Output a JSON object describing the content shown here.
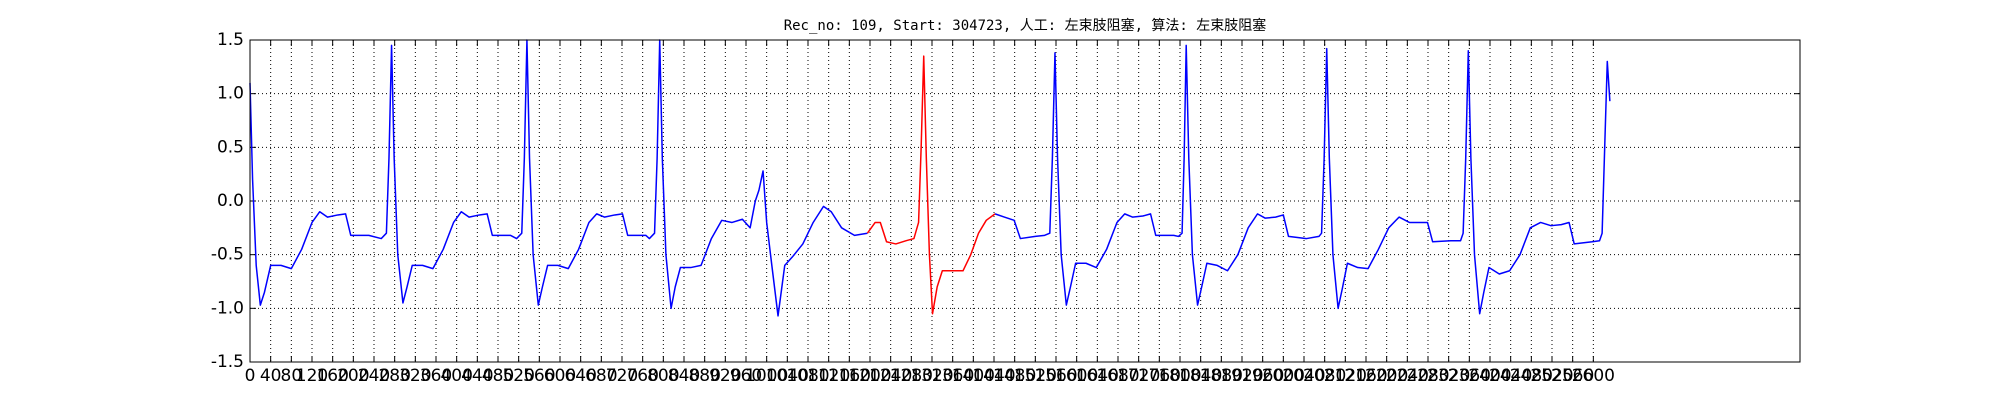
{
  "chart_data": {
    "type": "line",
    "title": "Rec_no: 109, Start: 304723, 人工: 左束肢阻塞, 算法: 左束肢阻塞",
    "xlim": [
      0,
      3000
    ],
    "xticks": [
      0,
      40,
      80,
      120,
      160,
      200,
      240,
      280,
      320,
      360,
      400,
      440,
      480,
      520,
      560,
      600,
      640,
      680,
      720,
      760,
      800,
      840,
      880,
      920,
      960,
      1000,
      1040,
      1080,
      1120,
      1160,
      1200,
      1240,
      1280,
      1320,
      1360,
      1400,
      1440,
      1480,
      1520,
      1560,
      1600,
      1640,
      1680,
      1720,
      1760,
      1800,
      1840,
      1880,
      1920,
      1960,
      2000,
      2040,
      2080,
      2120,
      2160,
      2200,
      2240,
      2280,
      2320,
      2360,
      2400,
      2440,
      2480,
      2520,
      2560,
      2600
    ],
    "ylim": [
      -1.5,
      1.5
    ],
    "yticks": [
      -1.5,
      {
        "value": -1,
        "label": "-1.0"
      },
      -0.5,
      {
        "value": 0,
        "label": "0.0"
      },
      0.5,
      {
        "value": 1,
        "label": "1.0"
      },
      1.5
    ],
    "grid": true,
    "series": [
      {
        "color": "#0000ff",
        "x": [
          0,
          5,
          12,
          20,
          28,
          40,
          60,
          80,
          100,
          120,
          135,
          150,
          170,
          185,
          195,
          230,
          254,
          264,
          269,
          274,
          279,
          286,
          296,
          304,
          314,
          334,
          354,
          374,
          394,
          409,
          424,
          444,
          459,
          469,
          504,
          516,
          526,
          531,
          536,
          541,
          548,
          558,
          566,
          576,
          596,
          616,
          636,
          656,
          671,
          686,
          706,
          721,
          731,
          766,
          773,
          783,
          788,
          793,
          798,
          805,
          815,
          823,
          833,
          853,
          873,
          893,
          913,
          933,
          953,
          968,
          978,
          985,
          993,
          1000,
          1010,
          1022,
          1035,
          1050,
          1070,
          1090,
          1110,
          1125,
          1145,
          1170,
          1195,
          1300,
          1442,
          1460,
          1479,
          1491,
          1520,
          1538,
          1548,
          1553,
          1558,
          1563,
          1570,
          1580,
          1588,
          1598,
          1618,
          1638,
          1658,
          1678,
          1693,
          1708,
          1728,
          1743,
          1753,
          1788,
          1797,
          1804,
          1808,
          1812,
          1817,
          1824,
          1834,
          1842,
          1852,
          1872,
          1892,
          1912,
          1932,
          1950,
          1965,
          1985,
          2000,
          2010,
          2045,
          2069,
          2074,
          2079,
          2084,
          2089,
          2096,
          2106,
          2114,
          2124,
          2144,
          2164,
          2184,
          2204,
          2224,
          2244,
          2264,
          2279,
          2289,
          2324,
          2343,
          2348,
          2353,
          2358,
          2363,
          2370,
          2380,
          2388,
          2398,
          2418,
          2438,
          2458,
          2478,
          2498,
          2518,
          2538,
          2553,
          2563,
          2598,
          2612,
          2617,
          2622,
          2627,
          2632
        ],
        "values": [
          1.1,
          0.2,
          -0.6,
          -0.97,
          -0.85,
          -0.6,
          -0.6,
          -0.63,
          -0.45,
          -0.2,
          -0.1,
          -0.15,
          -0.13,
          -0.12,
          -0.32,
          -0.32,
          -0.35,
          -0.3,
          0.4,
          1.45,
          0.4,
          -0.5,
          -0.95,
          -0.8,
          -0.6,
          -0.6,
          -0.63,
          -0.45,
          -0.2,
          -0.1,
          -0.15,
          -0.13,
          -0.12,
          -0.32,
          -0.32,
          -0.35,
          -0.3,
          0.4,
          1.5,
          0.4,
          -0.5,
          -0.97,
          -0.8,
          -0.6,
          -0.6,
          -0.63,
          -0.45,
          -0.2,
          -0.12,
          -0.15,
          -0.13,
          -0.12,
          -0.32,
          -0.32,
          -0.35,
          -0.3,
          0.4,
          1.5,
          0.4,
          -0.5,
          -1.0,
          -0.8,
          -0.62,
          -0.62,
          -0.6,
          -0.35,
          -0.18,
          -0.2,
          -0.17,
          -0.25,
          0.0,
          0.1,
          0.28,
          -0.2,
          -0.6,
          -1.07,
          -0.6,
          -0.52,
          -0.4,
          -0.2,
          -0.05,
          -0.1,
          -0.25,
          -0.32,
          -0.3,
          null,
          -0.12,
          -0.15,
          -0.18,
          -0.35,
          -0.33,
          -0.32,
          -0.3,
          0.4,
          1.38,
          0.4,
          -0.5,
          -0.97,
          -0.8,
          -0.58,
          -0.58,
          -0.62,
          -0.45,
          -0.2,
          -0.12,
          -0.15,
          -0.14,
          -0.12,
          -0.32,
          -0.32,
          -0.33,
          -0.3,
          0.4,
          1.45,
          0.4,
          -0.5,
          -0.97,
          -0.8,
          -0.58,
          -0.6,
          -0.65,
          -0.5,
          -0.25,
          -0.12,
          -0.16,
          -0.15,
          -0.13,
          -0.33,
          -0.35,
          -0.33,
          -0.3,
          0.4,
          1.42,
          0.4,
          -0.5,
          -1.0,
          -0.82,
          -0.58,
          -0.62,
          -0.63,
          -0.45,
          -0.25,
          -0.15,
          -0.2,
          -0.2,
          -0.2,
          -0.38,
          -0.37,
          -0.37,
          -0.3,
          0.4,
          1.4,
          0.4,
          -0.5,
          -1.05,
          -0.85,
          -0.62,
          -0.68,
          -0.65,
          -0.5,
          -0.25,
          -0.2,
          -0.23,
          -0.22,
          -0.2,
          -0.4,
          -0.38,
          -0.37,
          -0.3,
          0.5,
          1.3,
          0.93
        ]
      },
      {
        "color": "#ff0000",
        "x": [
          1195,
          1210,
          1220,
          1232,
          1250,
          1270,
          1285,
          1294,
          1299,
          1304,
          1309,
          1315,
          1321,
          1330,
          1340,
          1360,
          1380,
          1395,
          1410,
          1425,
          1442
        ],
        "values": [
          -0.3,
          -0.2,
          -0.2,
          -0.38,
          -0.4,
          -0.37,
          -0.35,
          -0.2,
          0.5,
          1.35,
          0.4,
          -0.5,
          -1.05,
          -0.8,
          -0.65,
          -0.65,
          -0.65,
          -0.5,
          -0.3,
          -0.18,
          -0.12
        ]
      }
    ]
  }
}
